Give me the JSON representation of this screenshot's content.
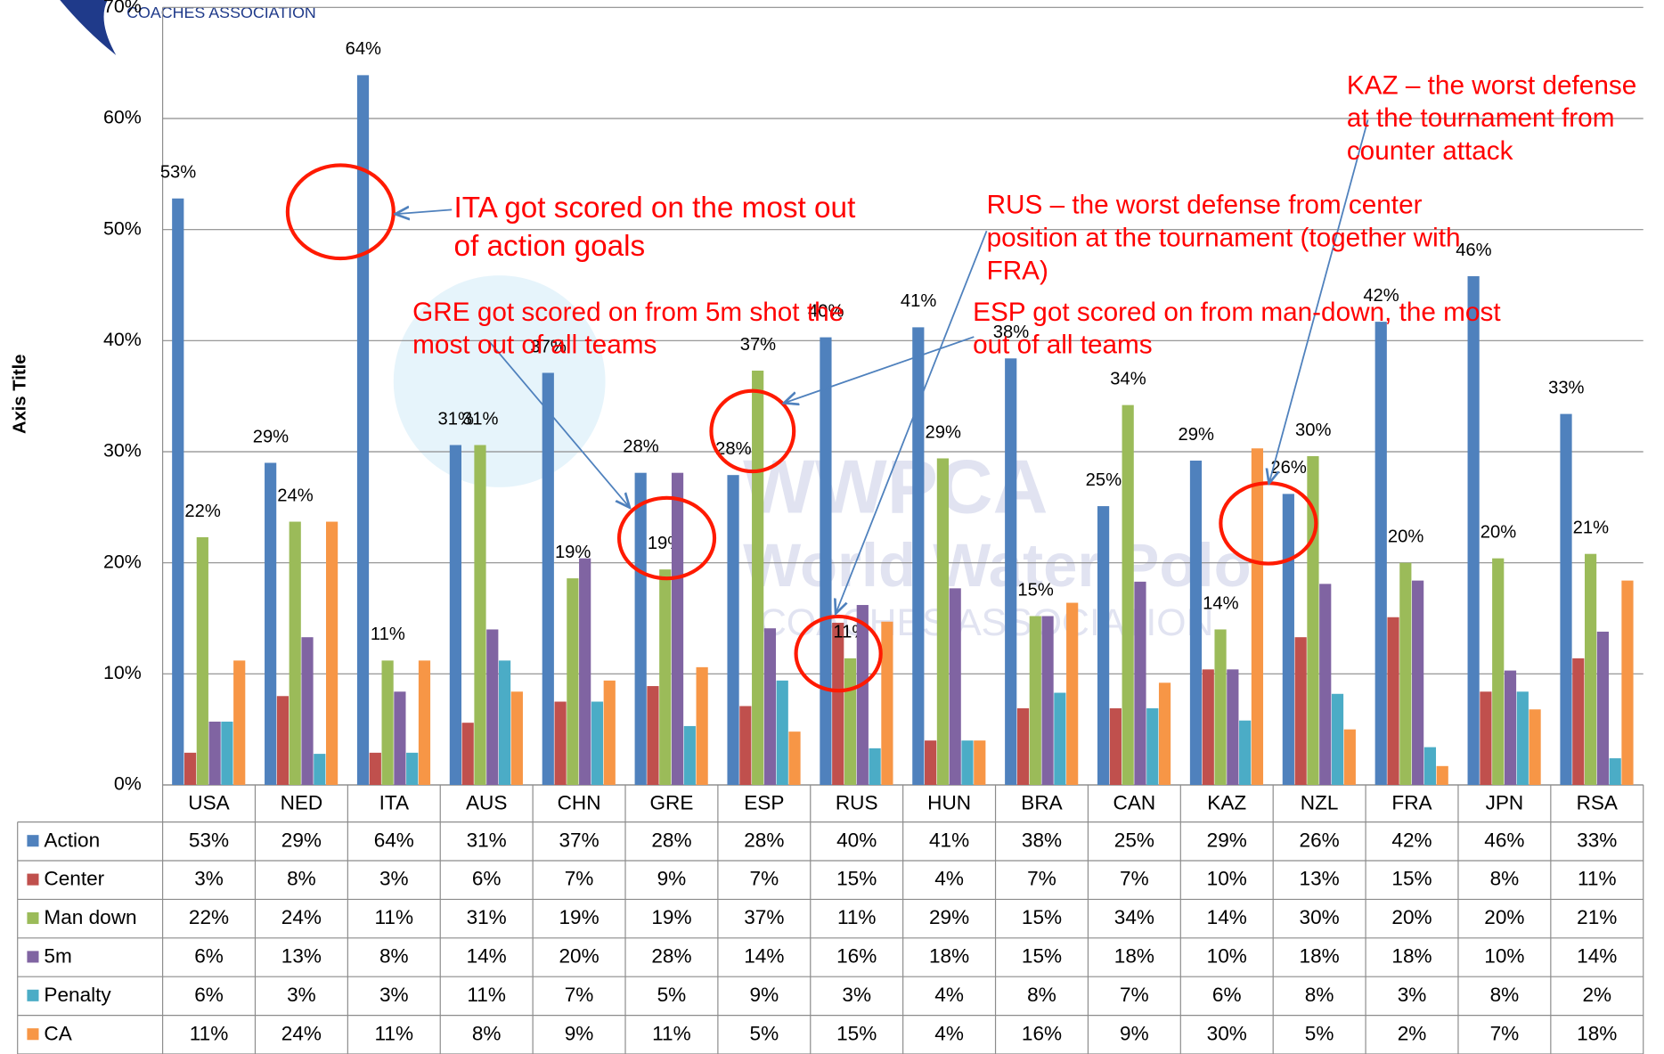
{
  "chart_data": {
    "type": "bar",
    "y_axis_title": "Axis Title",
    "logo_text": "COACHES ASSOCIATION",
    "watermark": [
      "WWPCA",
      "World Water Polo",
      "COACHES ASSOCIATION"
    ],
    "categories": [
      "USA",
      "NED",
      "ITA",
      "AUS",
      "CHN",
      "GRE",
      "ESP",
      "RUS",
      "HUN",
      "BRA",
      "CAN",
      "KAZ",
      "NZL",
      "FRA",
      "JPN",
      "RSA"
    ],
    "series": [
      {
        "name": "Action",
        "color": "#4f81bd",
        "show_labels": true,
        "values": [
          52.8,
          29.0,
          63.9,
          30.6,
          37.1,
          28.1,
          27.9,
          40.3,
          41.2,
          38.4,
          25.1,
          29.2,
          26.2,
          41.7,
          45.8,
          33.4
        ],
        "value_labels": [
          "53%",
          "29%",
          "64%",
          "31%",
          "37%",
          "28%",
          "28%",
          "40%",
          "41%",
          "38%",
          "25%",
          "29%",
          "26%",
          "42%",
          "46%",
          "33%"
        ]
      },
      {
        "name": "Center",
        "color": "#c0504d",
        "show_labels": false,
        "values": [
          2.9,
          8.0,
          2.9,
          5.6,
          7.5,
          8.9,
          7.1,
          14.6,
          4.0,
          6.9,
          6.9,
          10.4,
          13.3,
          15.1,
          8.4,
          11.4
        ],
        "value_labels": [
          "3%",
          "8%",
          "3%",
          "6%",
          "7%",
          "9%",
          "7%",
          "15%",
          "4%",
          "7%",
          "7%",
          "10%",
          "13%",
          "15%",
          "8%",
          "11%"
        ]
      },
      {
        "name": "Man down",
        "color": "#9bbb59",
        "show_labels": true,
        "values": [
          22.3,
          23.7,
          11.2,
          30.6,
          18.6,
          19.4,
          37.3,
          11.4,
          29.4,
          15.2,
          34.2,
          14.0,
          29.6,
          20.0,
          20.4,
          20.8
        ],
        "value_labels": [
          "22%",
          "24%",
          "11%",
          "31%",
          "19%",
          "19%",
          "37%",
          "11%",
          "29%",
          "15%",
          "34%",
          "14%",
          "30%",
          "20%",
          "20%",
          "21%"
        ]
      },
      {
        "name": "5m",
        "color": "#8064a2",
        "show_labels": false,
        "values": [
          5.7,
          13.3,
          8.4,
          14.0,
          20.4,
          28.1,
          14.1,
          16.2,
          17.7,
          15.2,
          18.3,
          10.4,
          18.1,
          18.4,
          10.3,
          13.8
        ],
        "value_labels": [
          "6%",
          "13%",
          "8%",
          "14%",
          "20%",
          "28%",
          "14%",
          "16%",
          "18%",
          "15%",
          "18%",
          "10%",
          "18%",
          "18%",
          "10%",
          "14%"
        ]
      },
      {
        "name": "Penalty",
        "color": "#4bacc6",
        "show_labels": false,
        "values": [
          5.7,
          2.8,
          2.9,
          11.2,
          7.5,
          5.3,
          9.4,
          3.3,
          4.0,
          8.3,
          6.9,
          5.8,
          8.2,
          3.4,
          8.4,
          2.4
        ],
        "value_labels": [
          "6%",
          "3%",
          "3%",
          "11%",
          "7%",
          "5%",
          "9%",
          "3%",
          "4%",
          "8%",
          "7%",
          "6%",
          "8%",
          "3%",
          "8%",
          "2%"
        ]
      },
      {
        "name": "CA",
        "color": "#f79646",
        "show_labels": false,
        "values": [
          11.2,
          23.7,
          11.2,
          8.4,
          9.4,
          10.6,
          4.8,
          14.7,
          4.0,
          16.4,
          9.2,
          30.3,
          5.0,
          1.7,
          6.8,
          18.4
        ],
        "value_labels": [
          "11%",
          "24%",
          "11%",
          "8%",
          "9%",
          "11%",
          "5%",
          "15%",
          "4%",
          "16%",
          "9%",
          "30%",
          "5%",
          "2%",
          "7%",
          "18%"
        ]
      }
    ],
    "ylim": [
      0,
      70
    ],
    "yticks": [
      {
        "value": 0,
        "label": "0%"
      },
      {
        "value": 10,
        "label": "10%"
      },
      {
        "value": 20,
        "label": "20%"
      },
      {
        "value": 30,
        "label": "30%"
      },
      {
        "value": 40,
        "label": "40%"
      },
      {
        "value": 50,
        "label": "50%"
      },
      {
        "value": 60,
        "label": "60%"
      },
      {
        "value": 70,
        "label": "70%"
      }
    ],
    "grid": true,
    "annotations": [
      {
        "lines": [
          "ITA got scored on the most out",
          "of action goals"
        ]
      },
      {
        "lines": [
          "GRE got scored on from 5m shot the",
          "most out of all teams"
        ]
      },
      {
        "lines": [
          "RUS – the worst defense from center",
          "position at the tournament (together with",
          "FRA)"
        ]
      },
      {
        "lines": [
          "ESP got scored on from man-down, the most",
          "out of all teams"
        ]
      },
      {
        "lines": [
          "KAZ – the worst defense",
          "at the tournament from",
          "counter attack"
        ]
      }
    ]
  }
}
